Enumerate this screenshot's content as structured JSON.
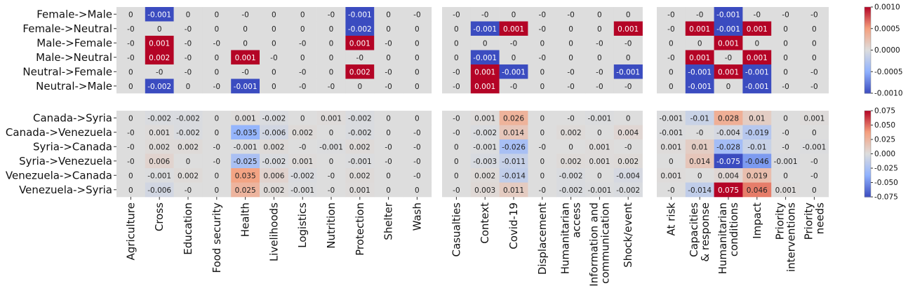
{
  "chart_data": {
    "type": "heatmap",
    "rows_top": [
      "Female->Male",
      "Female->Neutral",
      "Male->Female",
      "Male->Neutral",
      "Neutral->Female",
      "Neutral->Male"
    ],
    "rows_bottom": [
      "Canada->Syria",
      "Canada->Venezuela",
      "Syria->Canada",
      "Syria->Venezuela",
      "Venezuela->Canada",
      "Venezuela->Syria"
    ],
    "groups": [
      {
        "columns": [
          "Agriculture",
          "Cross",
          "Education",
          "Food security",
          "Health",
          "Livelihoods",
          "Logistics",
          "Nutrition",
          "Protection",
          "Shelter",
          "Wash"
        ]
      },
      {
        "columns": [
          "Casualties",
          "Context",
          "Covid-19",
          "Displacement",
          "Humanitarian access",
          "Information and communication",
          "Shock/event"
        ]
      },
      {
        "columns": [
          "At risk",
          "Capacities & response",
          "Humanitarian conditions",
          "Impact",
          "Priority interventions",
          "Priority needs"
        ]
      }
    ],
    "top_values": [
      [
        [
          "0",
          "-0.001",
          "0",
          "0",
          "-0",
          "0",
          "0",
          "-0",
          "-0.001",
          "0",
          "-0"
        ],
        [
          "-0",
          "0",
          "-0",
          "0",
          "0",
          "0",
          "0",
          "0",
          "-0.002",
          "0",
          "0"
        ],
        [
          "-0",
          "0.001",
          "-0",
          "-0",
          "0",
          "0",
          "-0",
          "0",
          "0.001",
          "-0",
          "0"
        ],
        [
          "-0",
          "0.002",
          "-0",
          "0",
          "0.001",
          "-0",
          "0",
          "0",
          "-0",
          "0",
          "0"
        ],
        [
          "0",
          "-0",
          "-0",
          "0",
          "-0",
          "0",
          "-0",
          "0",
          "0.002",
          "-0",
          "0"
        ],
        [
          "0",
          "-0.002",
          "0",
          "-0",
          "-0.001",
          "0",
          "-0",
          "-0",
          "0",
          "-0",
          "0"
        ]
      ],
      [
        [
          "-0",
          "-0",
          "0",
          "-0",
          "-0",
          "0",
          "0"
        ],
        [
          "0",
          "-0.001",
          "0.001",
          "-0",
          "0",
          "0",
          "0.001"
        ],
        [
          "0",
          "0",
          "-0",
          "0",
          "0",
          "-0",
          "-0"
        ],
        [
          "0",
          "-0.001",
          "0",
          "-0",
          "0",
          "0",
          "0"
        ],
        [
          "-0",
          "0.001",
          "-0.001",
          "0",
          "-0",
          "-0",
          "-0.001"
        ],
        [
          "-0",
          "0.001",
          "-0",
          "0",
          "-0",
          "-0",
          "-0"
        ]
      ],
      [
        [
          "-0",
          "-0",
          "-0.001",
          "-0",
          "-0",
          "-0"
        ],
        [
          "-0",
          "0.001",
          "-0.001",
          "0.001",
          "0",
          "0"
        ],
        [
          "0",
          "0",
          "0.001",
          "0",
          "0",
          "0"
        ],
        [
          "-0",
          "0.001",
          "-0",
          "0.001",
          "0",
          "0"
        ],
        [
          "0",
          "-0.001",
          "0.001",
          "-0.001",
          "0",
          "-0"
        ],
        [
          "0",
          "-0.001",
          "0",
          "-0.001",
          "-0",
          "-0"
        ]
      ]
    ],
    "bottom_values": [
      [
        [
          "0",
          "-0.002",
          "-0.002",
          "0",
          "0.001",
          "-0.002",
          "0",
          "0.001",
          "-0.002",
          "0",
          "0"
        ],
        [
          "-0",
          "0.001",
          "-0.002",
          "0",
          "-0.035",
          "-0.006",
          "0.002",
          "0",
          "-0.002",
          "0",
          "-0"
        ],
        [
          "-0",
          "0.002",
          "0.002",
          "-0",
          "-0.001",
          "0.002",
          "-0",
          "-0.001",
          "0.002",
          "-0",
          "-0"
        ],
        [
          "-0",
          "0.006",
          "0",
          "-0",
          "-0.025",
          "-0.002",
          "0.001",
          "0",
          "-0.001",
          "-0",
          "-0"
        ],
        [
          "0",
          "-0.001",
          "0.002",
          "0",
          "0.035",
          "0.006",
          "-0.002",
          "-0",
          "0.002",
          "0",
          "-0"
        ],
        [
          "0",
          "-0.006",
          "-0",
          "0",
          "0.025",
          "0.002",
          "-0.001",
          "-0",
          "0.001",
          "0",
          "0"
        ]
      ],
      [
        [
          "-0",
          "0.001",
          "0.026",
          "0",
          "-0",
          "-0.001",
          "0"
        ],
        [
          "-0",
          "-0.002",
          "0.014",
          "0",
          "0.002",
          "0",
          "0.004"
        ],
        [
          "0",
          "-0.001",
          "-0.026",
          "-0",
          "0",
          "0.001",
          "-0"
        ],
        [
          "0",
          "-0.003",
          "-0.011",
          "0",
          "0.002",
          "0.001",
          "0.002"
        ],
        [
          "0",
          "0.002",
          "-0.014",
          "0",
          "-0.002",
          "0",
          "-0.004"
        ],
        [
          "-0",
          "0.003",
          "0.011",
          "-0",
          "-0.002",
          "-0.001",
          "-0.002"
        ]
      ],
      [
        [
          "-0.001",
          "-0.01",
          "0.028",
          "0.01",
          "0",
          "0.001"
        ],
        [
          "-0.001",
          "-0",
          "-0.004",
          "-0.019",
          "-0",
          "0"
        ],
        [
          "0.001",
          "0.01",
          "-0.028",
          "-0.01",
          "-0",
          "-0.001"
        ],
        [
          "0",
          "0.014",
          "-0.075",
          "-0.046",
          "-0.001",
          "-0"
        ],
        [
          "0.001",
          "0",
          "0.004",
          "0.019",
          "0",
          "-0"
        ],
        [
          "-0",
          "-0.014",
          "0.075",
          "0.046",
          "0.001",
          "0"
        ]
      ]
    ],
    "colorbar_top": {
      "range": [
        -0.001,
        0.001
      ],
      "ticks": [
        "0.0010",
        "0.0005",
        "0.0000",
        "-0.0005",
        "-0.0010"
      ]
    },
    "colorbar_bottom": {
      "range": [
        -0.075,
        0.075
      ],
      "ticks": [
        "0.075",
        "0.050",
        "0.025",
        "0.000",
        "-0.025",
        "-0.050",
        "-0.075"
      ]
    },
    "colormap": "coolwarm",
    "zero_cell_color": "#dcdcdc"
  }
}
